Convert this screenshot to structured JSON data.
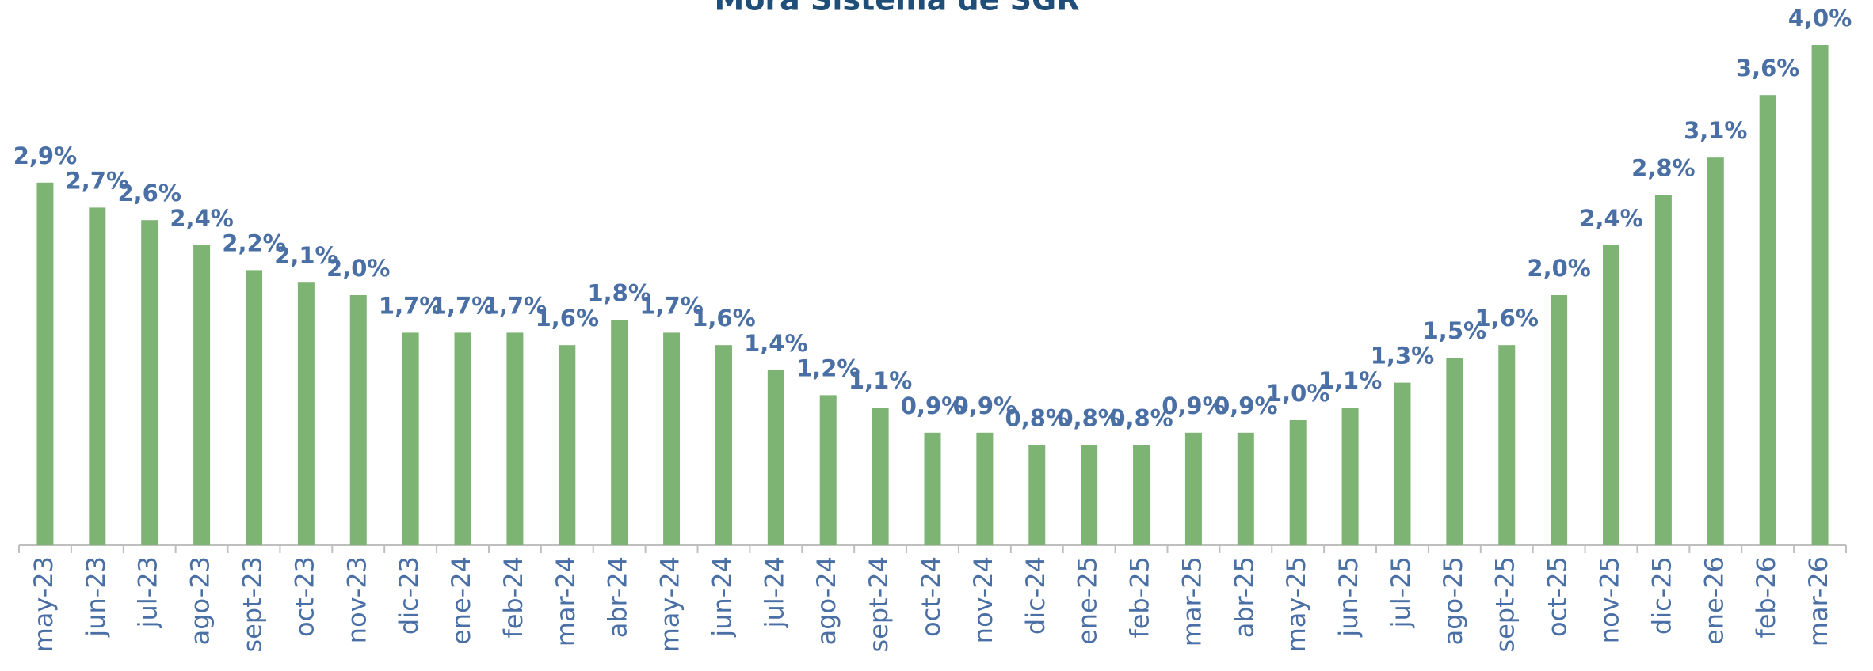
{
  "chart_data": {
    "type": "bar",
    "title": "Mora Sistema de SGR",
    "categories": [
      "may-23",
      "jun-23",
      "jul-23",
      "ago-23",
      "sept-23",
      "oct-23",
      "nov-23",
      "dic-23",
      "ene-24",
      "feb-24",
      "mar-24",
      "abr-24",
      "may-24",
      "jun-24",
      "jul-24",
      "ago-24",
      "sept-24",
      "oct-24",
      "nov-24",
      "dic-24",
      "ene-25",
      "feb-25",
      "mar-25",
      "abr-25",
      "may-25",
      "jun-25",
      "jul-25",
      "ago-25",
      "sept-25",
      "oct-25",
      "nov-25",
      "dic-25",
      "ene-26",
      "feb-26",
      "mar-26"
    ],
    "values": [
      2.9,
      2.7,
      2.6,
      2.4,
      2.2,
      2.1,
      2.0,
      1.7,
      1.7,
      1.7,
      1.6,
      1.8,
      1.7,
      1.6,
      1.4,
      1.2,
      1.1,
      0.9,
      0.9,
      0.8,
      0.8,
      0.8,
      0.9,
      0.9,
      1.0,
      1.1,
      1.3,
      1.5,
      1.6,
      2.0,
      2.4,
      2.8,
      3.1,
      3.6,
      4.0
    ],
    "value_labels": [
      "2,9%",
      "2,7%",
      "2,6%",
      "2,4%",
      "2,2%",
      "2,1%",
      "2,0%",
      "1,7%",
      "1,7%",
      "1,7%",
      "1,6%",
      "1,8%",
      "1,7%",
      "1,6%",
      "1,4%",
      "1,2%",
      "1,1%",
      "0,9%",
      "0,9%",
      "0,8%",
      "0,8%",
      "0,8%",
      "0,9%",
      "0,9%",
      "1,0%",
      "1,1%",
      "1,3%",
      "1,5%",
      "1,6%",
      "2,0%",
      "2,4%",
      "2,8%",
      "3,1%",
      "3,6%",
      "4,0%"
    ],
    "color": "#7db474"
  }
}
